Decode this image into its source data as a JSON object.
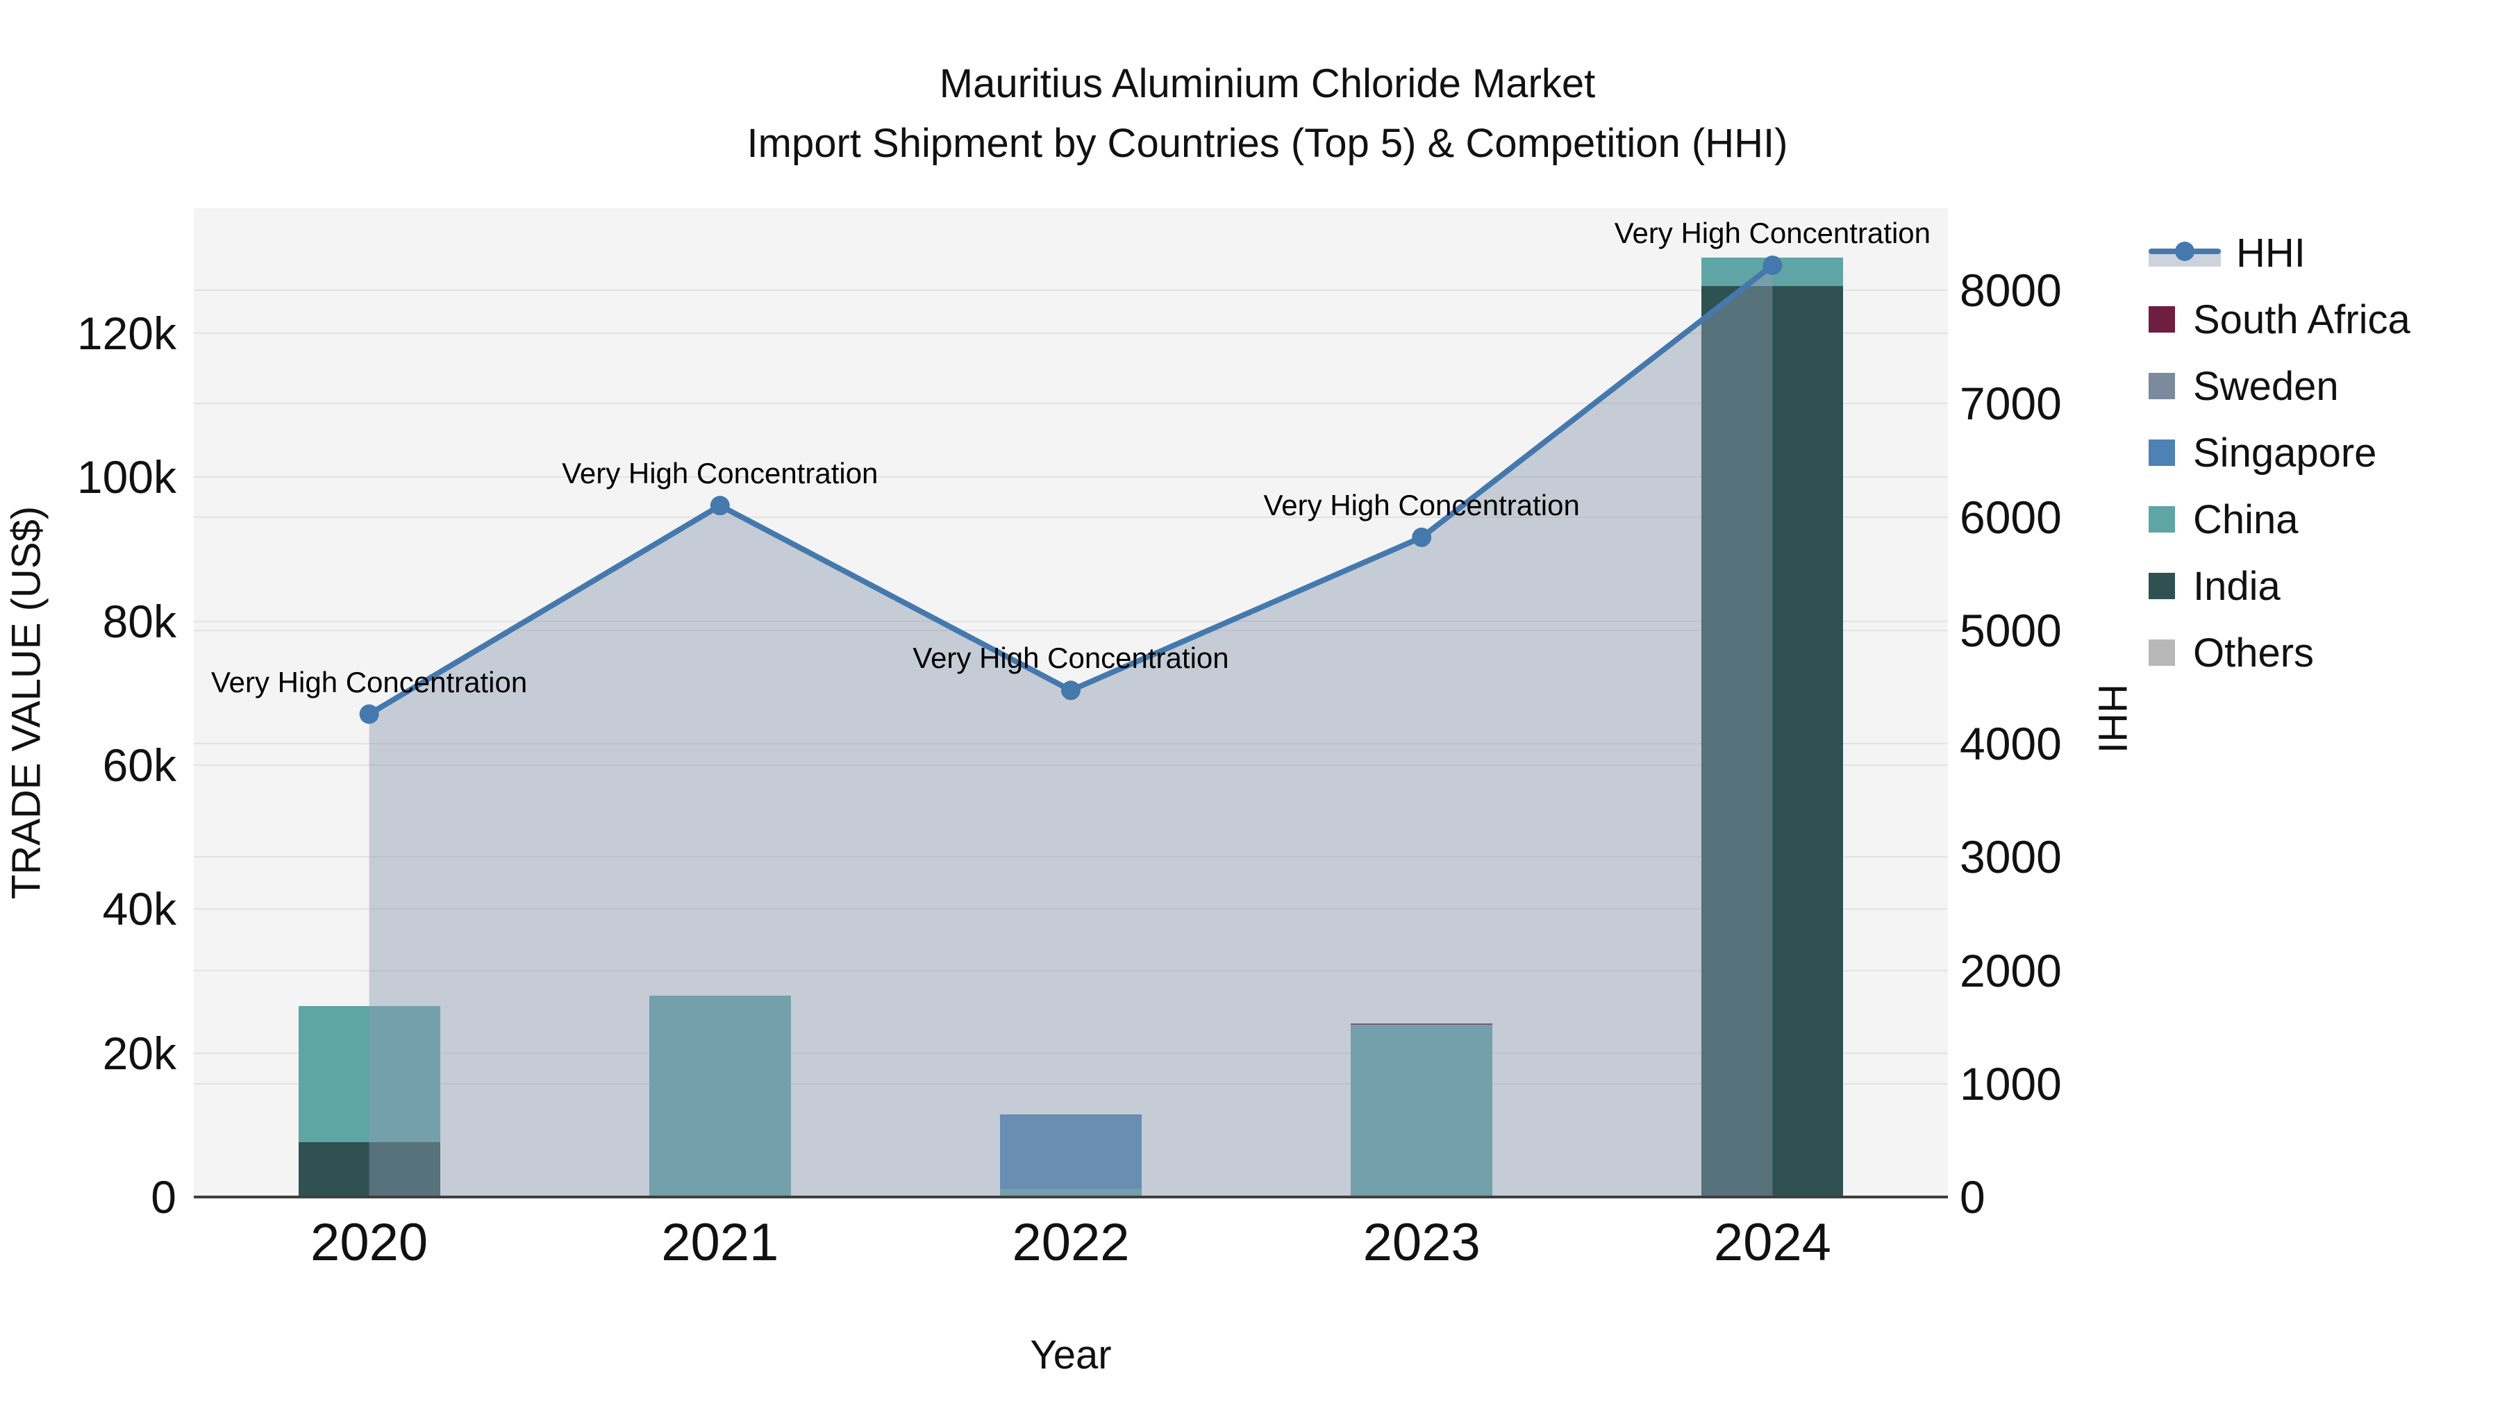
{
  "title": {
    "line1": "Mauritius Aluminium Chloride Market",
    "line2": "Import Shipment by Countries (Top 5) & Competition (HHI)"
  },
  "axes": {
    "x": {
      "title": "Year",
      "ticks": [
        "2020",
        "2021",
        "2022",
        "2023",
        "2024"
      ]
    },
    "y": {
      "title": "TRADE VALUE (US$)",
      "tick_labels": [
        "0",
        "20k",
        "40k",
        "60k",
        "80k",
        "100k",
        "120k"
      ],
      "tick_values": [
        0,
        20000,
        40000,
        60000,
        80000,
        100000,
        120000
      ]
    },
    "y2": {
      "title": "HHI",
      "tick_labels": [
        "0",
        "1000",
        "2000",
        "3000",
        "4000",
        "5000",
        "6000",
        "7000",
        "8000"
      ],
      "tick_values": [
        0,
        1000,
        2000,
        3000,
        4000,
        5000,
        6000,
        7000,
        8000
      ]
    }
  },
  "legend": {
    "items": [
      {
        "label": "HHI",
        "type": "line",
        "color": "#4579ad"
      },
      {
        "label": "South Africa",
        "type": "swatch",
        "color": "#6e1e41"
      },
      {
        "label": "Sweden",
        "type": "swatch",
        "color": "#7b8a9d"
      },
      {
        "label": "Singapore",
        "type": "swatch",
        "color": "#4e81b4"
      },
      {
        "label": "China",
        "type": "swatch",
        "color": "#5fa5a5"
      },
      {
        "label": "India",
        "type": "swatch",
        "color": "#2f5151"
      },
      {
        "label": "Others",
        "type": "swatch",
        "color": "#b8b8b8"
      }
    ]
  },
  "chart_data": {
    "type": "bar+line",
    "title": "Mauritius Aluminium Chloride Market — Import Shipment by Countries (Top 5) & Competition (HHI)",
    "categories": [
      "2020",
      "2021",
      "2022",
      "2023",
      "2024"
    ],
    "bar_series": [
      {
        "name": "South Africa",
        "color": "#6e1e41",
        "axis": "left",
        "values": [
          0,
          0,
          0,
          200,
          0
        ]
      },
      {
        "name": "Sweden",
        "color": "#7b8a9d",
        "axis": "left",
        "values": [
          0,
          0,
          0,
          0,
          0
        ]
      },
      {
        "name": "Singapore",
        "color": "#4e81b4",
        "axis": "left",
        "values": [
          0,
          0,
          10300,
          0,
          0
        ]
      },
      {
        "name": "China",
        "color": "#5fa5a5",
        "axis": "left",
        "values": [
          18900,
          28000,
          1200,
          23900,
          3900
        ]
      },
      {
        "name": "India",
        "color": "#2f5151",
        "axis": "left",
        "values": [
          7600,
          0,
          0,
          0,
          126600
        ]
      },
      {
        "name": "Others",
        "color": "#b8b8b8",
        "axis": "left",
        "values": [
          0,
          0,
          0,
          0,
          0
        ]
      }
    ],
    "stack_order_bottom_to_top": [
      "India",
      "China",
      "Singapore",
      "Sweden",
      "South Africa",
      "Others"
    ],
    "line_series": {
      "name": "HHI",
      "axis": "right",
      "color": "#4579ad",
      "area_fill": "rgba(140,155,178,0.45)",
      "values": [
        4260,
        6100,
        4470,
        5820,
        8220
      ]
    },
    "annotations": [
      {
        "x": "2020",
        "text": "Very High Concentration"
      },
      {
        "x": "2021",
        "text": "Very High Concentration"
      },
      {
        "x": "2022",
        "text": "Very High Concentration"
      },
      {
        "x": "2023",
        "text": "Very High Concentration"
      },
      {
        "x": "2024",
        "text": "Very High Concentration"
      }
    ],
    "xlabel": "Year",
    "ylabel": "TRADE VALUE (US$)",
    "ylabel_right": "HHI",
    "ylim_left": [
      0,
      137360
    ],
    "ylim_right": [
      0,
      8720
    ],
    "grid": true,
    "legend_position": "right"
  },
  "theme": {
    "page_bg": "#ffffff",
    "plot_bg": "#f4f4f4",
    "grid": "#e2e2e2",
    "axis_line": "#3f3f3f",
    "text": "#111111",
    "hhi_line": "#4579ad"
  }
}
